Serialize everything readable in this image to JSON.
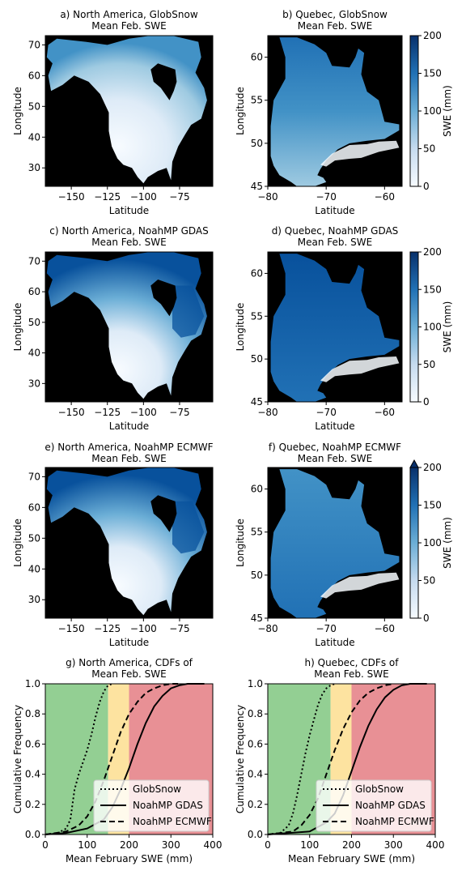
{
  "figure": {
    "panels": [
      {
        "id": "a",
        "title": "a) North America, GlobSnow",
        "subtitle": "Mean Feb. SWE",
        "xlabel": "Latitude",
        "ylabel": "Longitude"
      },
      {
        "id": "b",
        "title": "b) Quebec, GlobSnow",
        "subtitle": "Mean Feb. SWE",
        "xlabel": "Latitude",
        "ylabel": "Longitude"
      },
      {
        "id": "c",
        "title": "c) North America, NoahMP GDAS",
        "subtitle": "Mean Feb. SWE",
        "xlabel": "Latitude",
        "ylabel": "Longitude"
      },
      {
        "id": "d",
        "title": "d) Quebec, NoahMP GDAS",
        "subtitle": "Mean Feb. SWE",
        "xlabel": "Latitude",
        "ylabel": "Longitude"
      },
      {
        "id": "e",
        "title": "e) North America, NoahMP ECMWF",
        "subtitle": "Mean Feb. SWE",
        "xlabel": "Latitude",
        "ylabel": "Longitude"
      },
      {
        "id": "f",
        "title": "f) Quebec, NoahMP ECMWF",
        "subtitle": "Mean Feb. SWE",
        "xlabel": "Latitude",
        "ylabel": "Longitude"
      },
      {
        "id": "g",
        "title": "g) North America, CDFs of",
        "subtitle": "Mean Feb. SWE",
        "xlabel": "Mean February SWE (mm)",
        "ylabel": "Cumulative Frequency"
      },
      {
        "id": "h",
        "title": "h) Quebec, CDFs of",
        "subtitle": "Mean Feb. SWE",
        "xlabel": "Mean February SWE (mm)",
        "ylabel": "Cumulative Frequency"
      }
    ],
    "colorbar": {
      "label": "SWE (mm)",
      "ticks": [
        0,
        50,
        100,
        150,
        200
      ],
      "range": [
        0,
        200
      ],
      "colormap": "Blues",
      "extend_max_on_rows": [
        2,
        3
      ]
    },
    "colors": {
      "nodata": "#000000",
      "green_zone": "#93cf93",
      "yellow_zone": "#fde3a0",
      "red_zone": "#e89095",
      "blue_low": "#f7fbff",
      "blue_high": "#08306b"
    }
  },
  "chart_data": [
    {
      "panel": "a",
      "type": "heatmap",
      "variable": "Mean Feb. SWE (mm)",
      "xlim": [
        -168,
        -52
      ],
      "ylim": [
        24,
        73
      ],
      "xticks": [
        -150,
        -125,
        -100,
        -75
      ],
      "yticks": [
        30,
        40,
        50,
        60,
        70
      ]
    },
    {
      "panel": "b",
      "type": "heatmap",
      "variable": "Mean Feb. SWE (mm)",
      "xlim": [
        -80,
        -57
      ],
      "ylim": [
        45,
        62.5
      ],
      "xticks": [
        -80,
        -70,
        -60
      ],
      "yticks": [
        45,
        50,
        55,
        60
      ]
    },
    {
      "panel": "c",
      "type": "heatmap",
      "variable": "Mean Feb. SWE (mm)",
      "xlim": [
        -168,
        -52
      ],
      "ylim": [
        24,
        73
      ],
      "xticks": [
        -150,
        -125,
        -100,
        -75
      ],
      "yticks": [
        30,
        40,
        50,
        60,
        70
      ]
    },
    {
      "panel": "d",
      "type": "heatmap",
      "variable": "Mean Feb. SWE (mm)",
      "xlim": [
        -80,
        -57
      ],
      "ylim": [
        45,
        62.5
      ],
      "xticks": [
        -80,
        -70,
        -60
      ],
      "yticks": [
        45,
        50,
        55,
        60
      ]
    },
    {
      "panel": "e",
      "type": "heatmap",
      "variable": "Mean Feb. SWE (mm)",
      "xlim": [
        -168,
        -52
      ],
      "ylim": [
        24,
        73
      ],
      "xticks": [
        -150,
        -125,
        -100,
        -75
      ],
      "yticks": [
        30,
        40,
        50,
        60,
        70
      ]
    },
    {
      "panel": "f",
      "type": "heatmap",
      "variable": "Mean Feb. SWE (mm)",
      "xlim": [
        -80,
        -57
      ],
      "ylim": [
        45,
        62.5
      ],
      "xticks": [
        -80,
        -70,
        -60
      ],
      "yticks": [
        45,
        50,
        55,
        60
      ]
    },
    {
      "panel": "g",
      "type": "line",
      "xlim": [
        0,
        400
      ],
      "ylim": [
        0,
        1
      ],
      "xticks": [
        0,
        100,
        200,
        300,
        400
      ],
      "yticks": [
        0.0,
        0.2,
        0.4,
        0.6,
        0.8,
        1.0
      ],
      "zones": [
        {
          "from": 0,
          "to": 150,
          "color": "#93cf93"
        },
        {
          "from": 150,
          "to": 200,
          "color": "#fde3a0"
        },
        {
          "from": 200,
          "to": 400,
          "color": "#e89095"
        }
      ],
      "legend": "lower-right",
      "series": [
        {
          "name": "GlobSnow",
          "style": "dotted",
          "x": [
            0,
            30,
            50,
            60,
            65,
            70,
            80,
            90,
            100,
            110,
            120,
            130,
            140,
            150,
            160
          ],
          "y": [
            0,
            0.01,
            0.04,
            0.1,
            0.2,
            0.3,
            0.4,
            0.48,
            0.56,
            0.66,
            0.78,
            0.88,
            0.95,
            0.99,
            1.0
          ]
        },
        {
          "name": "NoahMP GDAS",
          "style": "solid",
          "x": [
            0,
            50,
            100,
            140,
            160,
            180,
            200,
            220,
            240,
            260,
            280,
            300,
            320,
            340,
            380
          ],
          "y": [
            0,
            0.01,
            0.04,
            0.1,
            0.18,
            0.3,
            0.44,
            0.6,
            0.74,
            0.85,
            0.92,
            0.97,
            0.99,
            1.0,
            1.0
          ]
        },
        {
          "name": "NoahMP ECMWF",
          "style": "dashed",
          "x": [
            0,
            50,
            80,
            100,
            120,
            140,
            160,
            180,
            200,
            220,
            240,
            260,
            280,
            300,
            320
          ],
          "y": [
            0,
            0.02,
            0.06,
            0.12,
            0.22,
            0.36,
            0.52,
            0.68,
            0.8,
            0.88,
            0.94,
            0.97,
            0.99,
            1.0,
            1.0
          ]
        }
      ]
    },
    {
      "panel": "h",
      "type": "line",
      "xlim": [
        0,
        400
      ],
      "ylim": [
        0,
        1
      ],
      "xticks": [
        0,
        100,
        200,
        300,
        400
      ],
      "yticks": [
        0.0,
        0.2,
        0.4,
        0.6,
        0.8,
        1.0
      ],
      "zones": [
        {
          "from": 0,
          "to": 150,
          "color": "#93cf93"
        },
        {
          "from": 150,
          "to": 200,
          "color": "#fde3a0"
        },
        {
          "from": 200,
          "to": 400,
          "color": "#e89095"
        }
      ],
      "legend": "lower-right",
      "series": [
        {
          "name": "GlobSnow",
          "style": "dotted",
          "x": [
            0,
            30,
            50,
            60,
            70,
            80,
            90,
            100,
            110,
            120,
            130,
            140,
            150,
            160
          ],
          "y": [
            0,
            0.01,
            0.06,
            0.14,
            0.26,
            0.4,
            0.54,
            0.66,
            0.76,
            0.86,
            0.93,
            0.97,
            0.99,
            1.0
          ]
        },
        {
          "name": "NoahMP GDAS",
          "style": "solid",
          "x": [
            0,
            100,
            140,
            160,
            180,
            200,
            220,
            240,
            260,
            280,
            300,
            320,
            340,
            380
          ],
          "y": [
            0,
            0.02,
            0.08,
            0.14,
            0.26,
            0.42,
            0.58,
            0.72,
            0.83,
            0.91,
            0.96,
            0.99,
            1.0,
            1.0
          ]
        },
        {
          "name": "NoahMP ECMWF",
          "style": "dashed",
          "x": [
            0,
            60,
            80,
            100,
            120,
            140,
            160,
            180,
            200,
            220,
            240,
            260,
            280,
            300
          ],
          "y": [
            0,
            0.02,
            0.06,
            0.13,
            0.24,
            0.4,
            0.56,
            0.7,
            0.81,
            0.89,
            0.94,
            0.97,
            0.99,
            1.0
          ]
        }
      ]
    }
  ]
}
